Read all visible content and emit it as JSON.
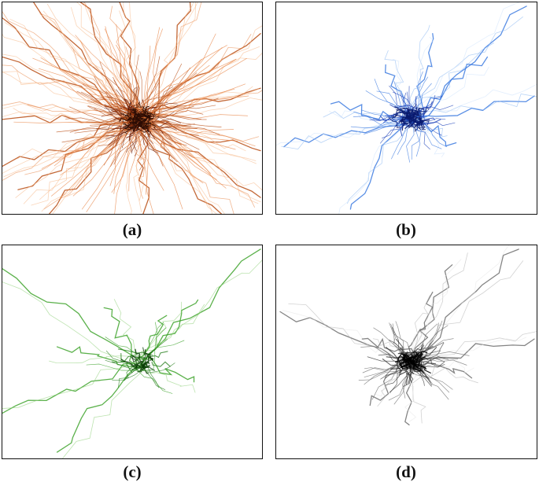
{
  "panels": [
    {
      "id": "a",
      "caption": "(a)",
      "colors": [
        "#f6b98a",
        "#e8874a",
        "#b94d14",
        "#6e1e08",
        "#2a0c04"
      ],
      "density": "very-dense"
    },
    {
      "id": "b",
      "caption": "(b)",
      "colors": [
        "#cfe2fb",
        "#8ab8f2",
        "#3d7be0",
        "#1a3fb8",
        "#0a1a6e"
      ],
      "density": "medium"
    },
    {
      "id": "c",
      "caption": "(c)",
      "colors": [
        "#d4f0c8",
        "#8fd07a",
        "#3ea32c",
        "#1f7a14",
        "#0a3d06"
      ],
      "density": "sparse"
    },
    {
      "id": "d",
      "caption": "(d)",
      "colors": [
        "#e6e6e6",
        "#b4b4b4",
        "#6e6e6e",
        "#2e2e2e",
        "#000000"
      ],
      "density": "medium"
    }
  ]
}
